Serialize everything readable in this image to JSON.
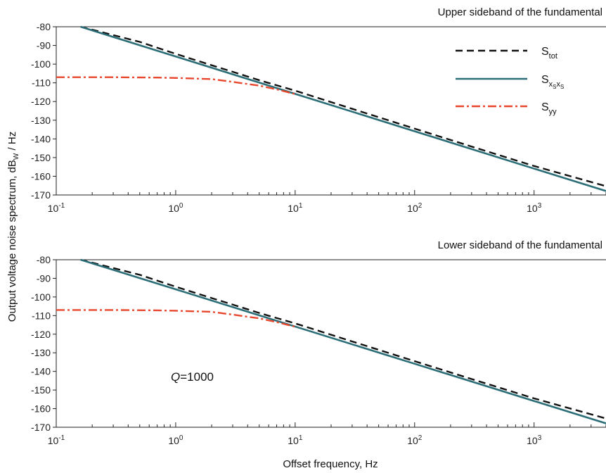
{
  "chart_data": [
    {
      "type": "line",
      "title": "Upper sideband of the fundamental",
      "xscale": "log",
      "xlim": [
        0.1,
        4000
      ],
      "ylim": [
        -170,
        -80
      ],
      "x_ticks": [
        0.1,
        1,
        10,
        100,
        1000
      ],
      "x_tick_labels": [
        {
          "base": "10",
          "exp": "-1"
        },
        {
          "base": "10",
          "exp": "0"
        },
        {
          "base": "10",
          "exp": "1"
        },
        {
          "base": "10",
          "exp": "2"
        },
        {
          "base": "10",
          "exp": "3"
        }
      ],
      "y_ticks": [
        -80,
        -90,
        -100,
        -110,
        -120,
        -130,
        -140,
        -150,
        -160,
        -170
      ],
      "y_tick_labels": [
        "-80",
        "-90",
        "-100",
        "-110",
        "-120",
        "-130",
        "-140",
        "-150",
        "-160",
        "-170"
      ],
      "legend_position": "top-right",
      "series": [
        {
          "name": "S_tot",
          "label_main": "S",
          "label_sub": "tot",
          "color": "#111111",
          "style": "dashed",
          "x": [
            0.16,
            0.5,
            1,
            2,
            3,
            5,
            10,
            30,
            100,
            300,
            1000,
            4000
          ],
          "y": [
            -80,
            -88.1,
            -94.5,
            -100.6,
            -104.1,
            -108.6,
            -114.2,
            -123.9,
            -134.5,
            -144.1,
            -154.5,
            -165.3
          ]
        },
        {
          "name": "S_xsxs",
          "label_main": "S",
          "label_sub": "x",
          "label_subsub": "S",
          "label_sub2": "x",
          "label_subsub2": "S",
          "color": "#2b6e78",
          "style": "solid",
          "x": [
            0.16,
            1,
            10,
            100,
            1000,
            4000
          ],
          "y": [
            -80,
            -95.9,
            -115.9,
            -135.9,
            -155.9,
            -167.9
          ]
        },
        {
          "name": "S_yy",
          "label_main": "S",
          "label_sub": "yy",
          "color": "#e8472e",
          "style": "dashdot",
          "x": [
            0.1,
            0.3,
            0.7,
            1,
            2,
            3,
            5,
            7,
            10
          ],
          "y": [
            -107,
            -107,
            -107.2,
            -107.4,
            -108,
            -109.5,
            -111.5,
            -113.5,
            -116
          ]
        }
      ]
    },
    {
      "type": "line",
      "title": "Lower sideband of the fundamental",
      "xscale": "log",
      "xlim": [
        0.1,
        4000
      ],
      "ylim": [
        -170,
        -80
      ],
      "x_ticks": [
        0.1,
        1,
        10,
        100,
        1000
      ],
      "x_tick_labels": [
        {
          "base": "10",
          "exp": "-1"
        },
        {
          "base": "10",
          "exp": "0"
        },
        {
          "base": "10",
          "exp": "1"
        },
        {
          "base": "10",
          "exp": "2"
        },
        {
          "base": "10",
          "exp": "3"
        }
      ],
      "y_ticks": [
        -80,
        -90,
        -100,
        -110,
        -120,
        -130,
        -140,
        -150,
        -160,
        -170
      ],
      "y_tick_labels": [
        "-80",
        "-90",
        "-100",
        "-110",
        "-120",
        "-130",
        "-140",
        "-150",
        "-160",
        "-170"
      ],
      "annotation": {
        "italic": "Q",
        "text": "=1000"
      },
      "series": [
        {
          "name": "S_tot",
          "color": "#111111",
          "style": "dashed",
          "x": [
            0.16,
            0.5,
            1,
            2,
            3,
            5,
            10,
            30,
            100,
            300,
            1000,
            4000
          ],
          "y": [
            -80,
            -88.1,
            -94.5,
            -100.6,
            -104.1,
            -108.6,
            -114.2,
            -123.9,
            -134.5,
            -144.1,
            -154.5,
            -165.3
          ]
        },
        {
          "name": "S_xsxs",
          "color": "#2b6e78",
          "style": "solid",
          "x": [
            0.16,
            1,
            10,
            100,
            1000,
            4000
          ],
          "y": [
            -80,
            -95.9,
            -115.9,
            -135.9,
            -155.9,
            -167.9
          ]
        },
        {
          "name": "S_yy",
          "color": "#e8472e",
          "style": "dashdot",
          "x": [
            0.1,
            0.3,
            0.7,
            1,
            2,
            3,
            5,
            7,
            10
          ],
          "y": [
            -107,
            -107,
            -107.2,
            -107.4,
            -108,
            -109.5,
            -111.5,
            -113.5,
            -116
          ]
        }
      ]
    }
  ],
  "ylabel": {
    "prefix": "Output voltage noise spectrum, dB",
    "sub": "W",
    "suffix": " / Hz"
  },
  "xlabel": "Offset frequency, Hz"
}
